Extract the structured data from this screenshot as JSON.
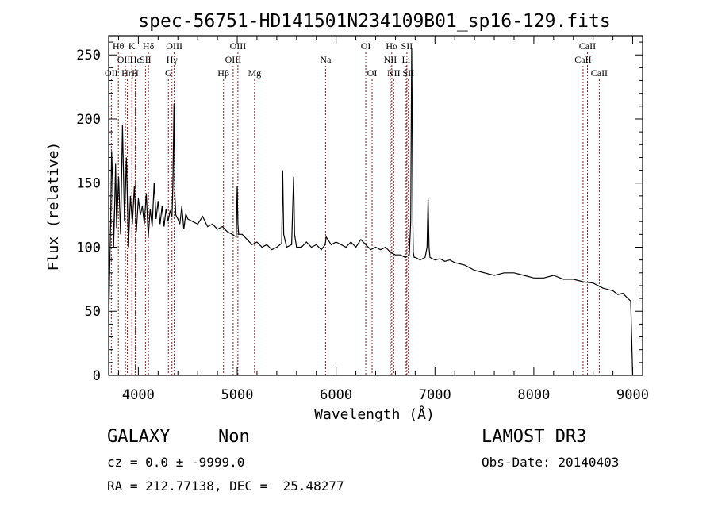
{
  "chart_data": {
    "type": "line",
    "title": "spec-56751-HD141501N234109B01_sp16-129.fits",
    "xlabel": "Wavelength (Å)",
    "ylabel": "Flux (relative)",
    "xlim": [
      3700,
      9100
    ],
    "ylim": [
      0,
      265
    ],
    "xticks": [
      4000,
      5000,
      6000,
      7000,
      8000,
      9000
    ],
    "yticks": [
      0,
      50,
      100,
      150,
      200,
      250
    ],
    "xtick_labels": [
      "4000",
      "5000",
      "6000",
      "7000",
      "8000",
      "9000"
    ],
    "ytick_labels": [
      "0",
      "50",
      "100",
      "150",
      "200",
      "250"
    ],
    "series": [
      {
        "name": "flux",
        "x": [
          3700,
          3710,
          3720,
          3730,
          3740,
          3750,
          3760,
          3770,
          3780,
          3800,
          3820,
          3840,
          3860,
          3880,
          3900,
          3920,
          3940,
          3960,
          3980,
          4000,
          4020,
          4040,
          4060,
          4080,
          4100,
          4120,
          4140,
          4160,
          4180,
          4200,
          4220,
          4240,
          4260,
          4280,
          4300,
          4320,
          4340,
          4350,
          4360,
          4370,
          4380,
          4400,
          4420,
          4440,
          4460,
          4480,
          4500,
          4550,
          4600,
          4650,
          4700,
          4750,
          4800,
          4850,
          4900,
          4950,
          4990,
          5000,
          5007,
          5015,
          5050,
          5100,
          5150,
          5200,
          5250,
          5300,
          5350,
          5400,
          5450,
          5460,
          5470,
          5500,
          5550,
          5570,
          5580,
          5600,
          5650,
          5700,
          5750,
          5800,
          5850,
          5890,
          5900,
          5950,
          6000,
          6050,
          6100,
          6150,
          6200,
          6250,
          6300,
          6350,
          6400,
          6450,
          6500,
          6550,
          6600,
          6650,
          6700,
          6740,
          6755,
          6760,
          6764,
          6768,
          6772,
          6776,
          6780,
          6790,
          6800,
          6850,
          6900,
          6920,
          6930,
          6940,
          6950,
          7000,
          7050,
          7100,
          7150,
          7200,
          7300,
          7400,
          7500,
          7600,
          7700,
          7800,
          7900,
          8000,
          8100,
          8200,
          8300,
          8400,
          8500,
          8600,
          8700,
          8800,
          8850,
          8900,
          8950,
          8980,
          8990,
          9000
        ],
        "values": [
          42,
          80,
          120,
          175,
          150,
          100,
          130,
          165,
          115,
          155,
          110,
          195,
          120,
          170,
          100,
          140,
          118,
          148,
          112,
          138,
          125,
          132,
          118,
          142,
          108,
          130,
          116,
          150,
          122,
          136,
          118,
          132,
          116,
          130,
          120,
          128,
          124,
          150,
          212,
          140,
          125,
          122,
          118,
          132,
          114,
          126,
          122,
          120,
          118,
          124,
          116,
          118,
          114,
          116,
          112,
          110,
          108,
          148,
          118,
          110,
          110,
          106,
          102,
          104,
          100,
          102,
          98,
          100,
          103,
          160,
          110,
          100,
          102,
          155,
          110,
          100,
          100,
          104,
          100,
          102,
          98,
          102,
          108,
          102,
          104,
          102,
          100,
          104,
          100,
          106,
          102,
          98,
          100,
          98,
          100,
          96,
          94,
          94,
          92,
          94,
          120,
          200,
          255,
          215,
          170,
          120,
          96,
          92,
          92,
          90,
          92,
          100,
          138,
          100,
          92,
          90,
          91,
          89,
          90,
          88,
          86,
          82,
          80,
          78,
          80,
          80,
          78,
          76,
          76,
          78,
          75,
          75,
          73,
          72,
          68,
          66,
          63,
          64,
          60,
          58,
          28,
          0
        ]
      }
    ],
    "line_markers": [
      {
        "label": "OII",
        "wavelength": 3727,
        "row": 3
      },
      {
        "label": "Hθ",
        "wavelength": 3798,
        "row": 1
      },
      {
        "label": "OIII",
        "wavelength": 3869,
        "row": 2
      },
      {
        "label": "Hη",
        "wavelength": 3889,
        "row": 3
      },
      {
        "label": "Hε",
        "wavelength": 3970,
        "row": 2
      },
      {
        "label": "K",
        "wavelength": 3934,
        "row": 1
      },
      {
        "label": "H",
        "wavelength": 3968,
        "row": 3
      },
      {
        "label": "SII",
        "wavelength": 4072,
        "row": 2
      },
      {
        "label": "Hδ",
        "wavelength": 4102,
        "row": 1
      },
      {
        "label": "G",
        "wavelength": 4304,
        "row": 3
      },
      {
        "label": "Hγ",
        "wavelength": 4340,
        "row": 2
      },
      {
        "label": "OIII",
        "wavelength": 4363,
        "row": 1
      },
      {
        "label": "Hβ",
        "wavelength": 4861,
        "row": 3
      },
      {
        "label": "OIII",
        "wavelength": 4959,
        "row": 2
      },
      {
        "label": "OIII",
        "wavelength": 5007,
        "row": 1
      },
      {
        "label": "Mg",
        "wavelength": 5175,
        "row": 3
      },
      {
        "label": "Na",
        "wavelength": 5894,
        "row": 2
      },
      {
        "label": "OI",
        "wavelength": 6300,
        "row": 1
      },
      {
        "label": "OI",
        "wavelength": 6364,
        "row": 3
      },
      {
        "label": "NII",
        "wavelength": 6548,
        "row": 2
      },
      {
        "label": "Hα",
        "wavelength": 6563,
        "row": 1
      },
      {
        "label": "NII",
        "wavelength": 6583,
        "row": 3
      },
      {
        "label": "Li",
        "wavelength": 6708,
        "row": 2
      },
      {
        "label": "SII",
        "wavelength": 6716,
        "row": 1
      },
      {
        "label": "SII",
        "wavelength": 6731,
        "row": 3
      },
      {
        "label": "CaII",
        "wavelength": 8498,
        "row": 2
      },
      {
        "label": "CaII",
        "wavelength": 8542,
        "row": 1
      },
      {
        "label": "CaII",
        "wavelength": 8662,
        "row": 3
      }
    ]
  },
  "info": {
    "class": "GALAXY",
    "subclass": "Non",
    "survey": "LAMOST DR3",
    "cz": "cz = 0.0 ± -9999.0",
    "obs_date": "Obs-Date: 20140403",
    "radec": "RA = 212.77138, DEC =  25.48277"
  },
  "colors": {
    "marker": "#8b1a1a",
    "spectrum": "#000000"
  }
}
